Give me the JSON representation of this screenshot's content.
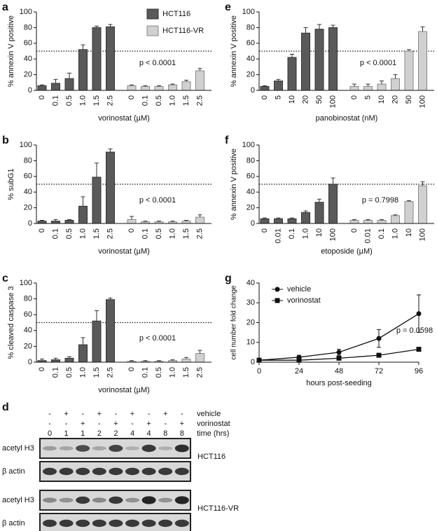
{
  "chart_data": [
    {
      "type": "bar",
      "panel": "a",
      "ylabel": "% annexin V positive",
      "xlabel": "vorinostat (µM)",
      "annotation": "p < 0.0001",
      "reference_line": 50,
      "categories": [
        "0",
        "0.1",
        "0.5",
        "1.0",
        "1.5",
        "2.5",
        "0",
        "0.1",
        "0.5",
        "1.0",
        "1.5",
        "2.5"
      ],
      "series": [
        {
          "name": "HCT116",
          "color": "#5a5a5a",
          "values": [
            6,
            9,
            15,
            52,
            80,
            81,
            null,
            null,
            null,
            null,
            null,
            null
          ],
          "errors": [
            1,
            5,
            7,
            6,
            2,
            3,
            null,
            null,
            null,
            null,
            null,
            null
          ]
        },
        {
          "name": "HCT116-VR",
          "color": "#d0d0d0",
          "values": [
            null,
            null,
            null,
            null,
            null,
            null,
            6,
            5,
            5,
            7,
            11,
            25
          ],
          "errors": [
            null,
            null,
            null,
            null,
            null,
            null,
            1,
            1,
            1,
            1,
            2,
            3
          ]
        }
      ],
      "ylim": [
        0,
        100
      ],
      "yticks": [
        0,
        20,
        40,
        60,
        80,
        100
      ]
    },
    {
      "type": "bar",
      "panel": "b",
      "ylabel": "% subG1",
      "xlabel": "vorinostat (µM)",
      "annotation": "p < 0.0001",
      "reference_line": 50,
      "categories": [
        "0",
        "0.1",
        "0.5",
        "1.0",
        "1.5",
        "2.5",
        "0",
        "0.1",
        "0.5",
        "1.0",
        "1.5",
        "2.5"
      ],
      "series": [
        {
          "color": "#5a5a5a",
          "values": [
            3,
            3,
            4,
            22,
            59,
            91,
            null,
            null,
            null,
            null,
            null,
            null
          ],
          "errors": [
            1,
            2,
            1,
            12,
            18,
            4,
            null,
            null,
            null,
            null,
            null,
            null
          ]
        },
        {
          "color": "#d0d0d0",
          "values": [
            null,
            null,
            null,
            null,
            null,
            null,
            5,
            2,
            2,
            2,
            3,
            8
          ],
          "errors": [
            null,
            null,
            null,
            null,
            null,
            null,
            4,
            1,
            1,
            1,
            1,
            3
          ]
        }
      ],
      "ylim": [
        0,
        100
      ],
      "yticks": [
        0,
        20,
        40,
        60,
        80,
        100
      ]
    },
    {
      "type": "bar",
      "panel": "c",
      "ylabel": "% cleaved caspase 3",
      "xlabel": "vorinostat (µM)",
      "annotation": "p < 0.0001",
      "reference_line": 50,
      "categories": [
        "0",
        "0.1",
        "0.5",
        "1.0",
        "1.5",
        "2.5",
        "0",
        "0.1",
        "0.5",
        "1.0",
        "1.5",
        "2.5"
      ],
      "series": [
        {
          "color": "#5a5a5a",
          "values": [
            2,
            3,
            5,
            22,
            52,
            79,
            null,
            null,
            null,
            null,
            null,
            null
          ],
          "errors": [
            2,
            2,
            2,
            9,
            13,
            2,
            null,
            null,
            null,
            null,
            null,
            null
          ]
        },
        {
          "color": "#d0d0d0",
          "values": [
            null,
            null,
            null,
            null,
            null,
            null,
            1,
            1,
            1,
            2,
            4,
            11
          ],
          "errors": [
            null,
            null,
            null,
            null,
            null,
            null,
            1,
            1,
            1,
            1,
            2,
            4
          ]
        }
      ],
      "ylim": [
        0,
        100
      ],
      "yticks": [
        0,
        20,
        40,
        60,
        80,
        100
      ]
    },
    {
      "type": "bar",
      "panel": "e",
      "ylabel": "% annexin V positive",
      "xlabel": "panobinostat (nM)",
      "annotation": "p < 0.0001",
      "reference_line": 50,
      "categories": [
        "0",
        "5",
        "10",
        "20",
        "50",
        "100",
        "0",
        "5",
        "10",
        "20",
        "50",
        "100"
      ],
      "series": [
        {
          "color": "#5a5a5a",
          "values": [
            5,
            12,
            42,
            73,
            78,
            80,
            null,
            null,
            null,
            null,
            null,
            null
          ],
          "errors": [
            1,
            2,
            4,
            7,
            6,
            3,
            null,
            null,
            null,
            null,
            null,
            null
          ]
        },
        {
          "color": "#d0d0d0",
          "values": [
            null,
            null,
            null,
            null,
            null,
            null,
            5,
            5,
            8,
            15,
            50,
            75
          ],
          "errors": [
            null,
            null,
            null,
            null,
            null,
            null,
            3,
            3,
            4,
            5,
            2,
            6
          ]
        }
      ],
      "ylim": [
        0,
        100
      ],
      "yticks": [
        0,
        20,
        40,
        60,
        80,
        100
      ]
    },
    {
      "type": "bar",
      "panel": "f",
      "ylabel": "% annexin V positive",
      "xlabel": "etoposide (µM)",
      "annotation": "p = 0.7998",
      "reference_line": 50,
      "categories": [
        "0",
        "0.01",
        "0.1",
        "1.0",
        "10",
        "100",
        "0",
        "0.01",
        "0.1",
        "1.0",
        "10",
        "100"
      ],
      "series": [
        {
          "color": "#5a5a5a",
          "values": [
            6,
            6,
            6,
            14,
            27,
            50,
            null,
            null,
            null,
            null,
            null,
            null
          ],
          "errors": [
            1,
            1,
            1,
            2,
            4,
            8,
            null,
            null,
            null,
            null,
            null,
            null
          ]
        },
        {
          "color": "#d0d0d0",
          "values": [
            null,
            null,
            null,
            null,
            null,
            null,
            4,
            4,
            4,
            10,
            28,
            48
          ],
          "errors": [
            null,
            null,
            null,
            null,
            null,
            null,
            1,
            1,
            1,
            1,
            1,
            5
          ]
        }
      ],
      "ylim": [
        0,
        100
      ],
      "yticks": [
        0,
        20,
        40,
        60,
        80,
        100
      ]
    },
    {
      "type": "line",
      "panel": "g",
      "ylabel": "cell number fold change",
      "xlabel": "hours post-seeding",
      "annotation": "p = 0.0598",
      "x": [
        0,
        24,
        48,
        72,
        96
      ],
      "series": [
        {
          "name": "vehicle",
          "color": "#111111",
          "marker": "circle",
          "values": [
            1,
            2.5,
            5,
            12,
            24.5
          ],
          "errors": [
            0.5,
            1,
            1.5,
            4.5,
            9.5
          ]
        },
        {
          "name": "vorinostat",
          "color": "#111111",
          "marker": "square",
          "values": [
            1,
            1,
            2,
            3.5,
            6.5
          ],
          "errors": [
            0.3,
            0.5,
            0.5,
            0.5,
            1
          ]
        }
      ],
      "xlim": [
        0,
        96
      ],
      "xticks": [
        0,
        24,
        48,
        72,
        96
      ],
      "ylim": [
        0,
        40
      ],
      "yticks": [
        0,
        10,
        20,
        30,
        40
      ]
    }
  ],
  "western_blot": {
    "panel": "d",
    "treatments": [
      {
        "name": "vehicle",
        "values": [
          "-",
          "+",
          "-",
          "+",
          "-",
          "+",
          "-",
          "+",
          "-"
        ]
      },
      {
        "name": "vorinostat",
        "values": [
          "-",
          "-",
          "+",
          "-",
          "+",
          "-",
          "+",
          "-",
          "+"
        ]
      }
    ],
    "time": {
      "name": "time (hrs)",
      "values": [
        0,
        1,
        1,
        2,
        2,
        4,
        4,
        8,
        8
      ]
    },
    "blots": [
      {
        "cell_line": "HCT116",
        "rows": [
          "acetyl H3",
          "β actin"
        ]
      },
      {
        "cell_line": "HCT116-VR",
        "rows": [
          "acetyl H3",
          "β actin"
        ]
      }
    ]
  }
}
